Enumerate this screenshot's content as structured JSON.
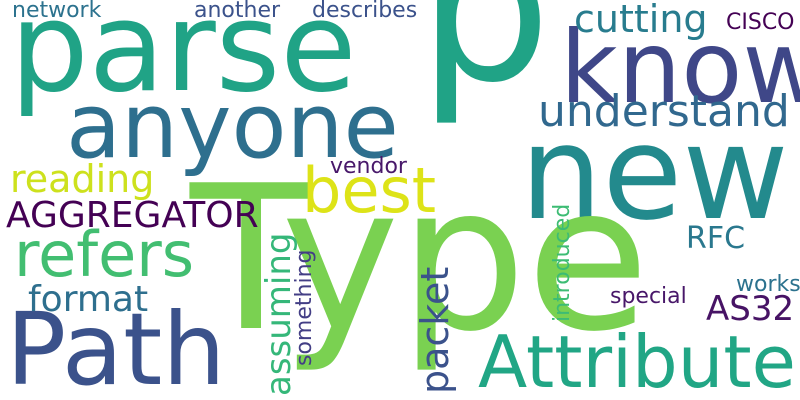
{
  "cloud": {
    "words": [
      {
        "text": "parse",
        "color": "#20a386"
      },
      {
        "text": "p",
        "color": "#20a386"
      },
      {
        "text": "know",
        "color": "#3f4788"
      },
      {
        "text": "anyone",
        "color": "#2e6f8e"
      },
      {
        "text": "new",
        "color": "#238a8d"
      },
      {
        "text": "Type",
        "color": "#7ad151"
      },
      {
        "text": "Path",
        "color": "#3b528b"
      },
      {
        "text": "Attribute",
        "color": "#21a685"
      },
      {
        "text": "best",
        "color": "#dde318"
      },
      {
        "text": "refers",
        "color": "#42be71"
      },
      {
        "text": "understand",
        "color": "#31688e"
      },
      {
        "text": "cutting",
        "color": "#287c8e"
      },
      {
        "text": "AGGREGATOR",
        "color": "#440154"
      },
      {
        "text": "reading",
        "color": "#cde11d"
      },
      {
        "text": "format",
        "color": "#2e6f8e"
      },
      {
        "text": "RFC",
        "color": "#2a788e"
      },
      {
        "text": "AS32",
        "color": "#471365"
      },
      {
        "text": "network",
        "color": "#2c728e"
      },
      {
        "text": "another",
        "color": "#3b528b"
      },
      {
        "text": "describes",
        "color": "#3b528b"
      },
      {
        "text": "CISCO",
        "color": "#440154"
      },
      {
        "text": "vendor",
        "color": "#48186a"
      },
      {
        "text": "works",
        "color": "#2c728e"
      },
      {
        "text": "special",
        "color": "#481769"
      },
      {
        "text": "packet",
        "color": "#3b528b"
      },
      {
        "text": "assuming",
        "color": "#35b779"
      },
      {
        "text": "something",
        "color": "#433e85"
      },
      {
        "text": "introduced",
        "color": "#3dbc74"
      }
    ]
  }
}
